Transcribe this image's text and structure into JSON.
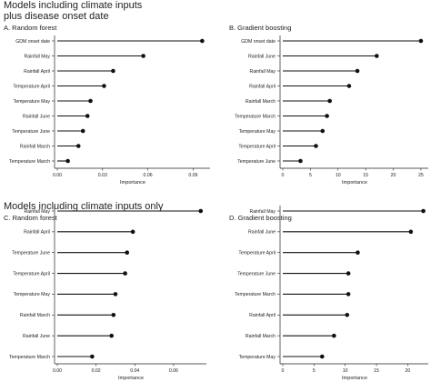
{
  "section1_title": "Models including climate inputs\nplus disease onset date",
  "section2_title": "Models including climate inputs only",
  "chart_data": [
    {
      "type": "lollipop",
      "title": "A. Random forest",
      "xlabel": "Importance",
      "xlim": [
        0,
        0.1
      ],
      "xticks": [
        0.0,
        0.03,
        0.06,
        0.09
      ],
      "xtick_labels": [
        "0.00",
        "0.03",
        "0.06",
        "0.09"
      ],
      "categories": [
        "GDM onset date",
        "Rainfall May",
        "Rainfall April",
        "Temperature April",
        "Temperature May",
        "Rainfall June",
        "Temperature June",
        "Rainfall March",
        "Temperature March"
      ],
      "values": [
        0.096,
        0.057,
        0.037,
        0.031,
        0.022,
        0.02,
        0.017,
        0.014,
        0.007
      ]
    },
    {
      "type": "lollipop",
      "title": "B. Gradient boosting",
      "xlabel": "Importance",
      "xlim": [
        0,
        26
      ],
      "xticks": [
        0,
        5,
        10,
        15,
        20,
        25
      ],
      "xtick_labels": [
        "0",
        "5",
        "10",
        "15",
        "20",
        "25"
      ],
      "categories": [
        "GDM onset date",
        "Rainfall June",
        "Rainfall May",
        "Rainfall April",
        "Rainfall March",
        "Temperature March",
        "Temperature May",
        "Temperature April",
        "Temperature June"
      ],
      "values": [
        25.0,
        17.0,
        13.5,
        12.0,
        8.5,
        8.0,
        7.2,
        6.0,
        3.2
      ]
    },
    {
      "type": "lollipop",
      "title": "C. Random forest",
      "xlabel": "Importance",
      "xlim": [
        0,
        0.076
      ],
      "xticks": [
        0.0,
        0.02,
        0.04,
        0.06
      ],
      "xtick_labels": [
        "0.00",
        "0.02",
        "0.04",
        "0.06"
      ],
      "categories": [
        "Rainfall May",
        "Rainfall April",
        "Temperature June",
        "Temperature April",
        "Temperature May",
        "Rainfall March",
        "Rainfall June",
        "Temperature March"
      ],
      "values": [
        0.074,
        0.039,
        0.036,
        0.035,
        0.03,
        0.029,
        0.028,
        0.018
      ]
    },
    {
      "type": "lollipop",
      "title": "D. Gradient boosting",
      "xlabel": "Importance",
      "xlim": [
        0,
        23
      ],
      "xticks": [
        0,
        5,
        10,
        15,
        20
      ],
      "xtick_labels": [
        "0",
        "5",
        "10",
        "15",
        "20"
      ],
      "categories": [
        "Rainfall May",
        "Rainfall June",
        "Temperature April",
        "Temperature June",
        "Temperature March",
        "Rainfall April",
        "Rainfall March",
        "Temperature May"
      ],
      "values": [
        22.5,
        20.5,
        12.0,
        10.5,
        10.5,
        10.3,
        8.2,
        6.3
      ]
    }
  ]
}
